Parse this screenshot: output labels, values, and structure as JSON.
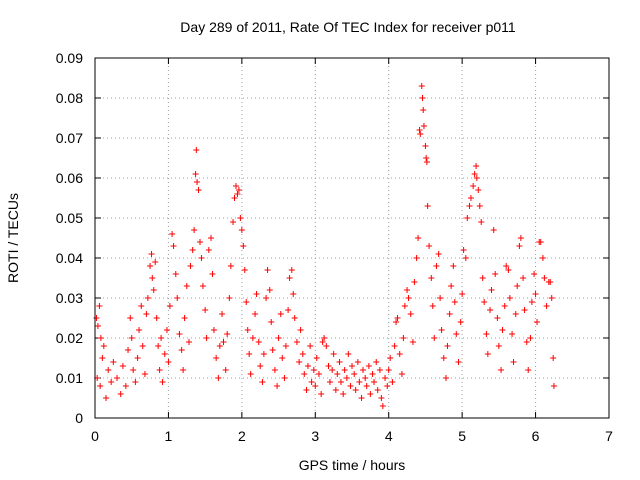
{
  "chart_data": {
    "type": "scatter",
    "title": "Day 289 of 2011, Rate Of TEC Index for receiver p011",
    "xlabel": "GPS time / hours",
    "ylabel": "ROTI / TECUs",
    "xlim": [
      0,
      7
    ],
    "ylim": [
      0,
      0.09
    ],
    "xticks": [
      "0",
      "1",
      "2",
      "3",
      "4",
      "5",
      "6",
      "7"
    ],
    "yticks": [
      "0",
      "0.01",
      "0.02",
      "0.03",
      "0.04",
      "0.05",
      "0.06",
      "0.07",
      "0.08",
      "0.09"
    ],
    "grid": true,
    "marker": "+",
    "color": "#ff0000",
    "series": [
      {
        "points": [
          [
            0.02,
            0.025
          ],
          [
            0.04,
            0.023
          ],
          [
            0.06,
            0.028
          ],
          [
            0.08,
            0.02
          ],
          [
            0.1,
            0.015
          ],
          [
            0.03,
            0.01
          ],
          [
            0.07,
            0.008
          ],
          [
            0.12,
            0.018
          ],
          [
            0.15,
            0.005
          ],
          [
            0.18,
            0.012
          ],
          [
            0.22,
            0.009
          ],
          [
            0.25,
            0.014
          ],
          [
            0.3,
            0.01
          ],
          [
            0.35,
            0.006
          ],
          [
            0.38,
            0.013
          ],
          [
            0.42,
            0.008
          ],
          [
            0.45,
            0.017
          ],
          [
            0.48,
            0.025
          ],
          [
            0.5,
            0.02
          ],
          [
            0.52,
            0.012
          ],
          [
            0.55,
            0.009
          ],
          [
            0.58,
            0.015
          ],
          [
            0.6,
            0.022
          ],
          [
            0.63,
            0.028
          ],
          [
            0.65,
            0.018
          ],
          [
            0.68,
            0.011
          ],
          [
            0.7,
            0.026
          ],
          [
            0.72,
            0.03
          ],
          [
            0.75,
            0.038
          ],
          [
            0.77,
            0.041
          ],
          [
            0.78,
            0.035
          ],
          [
            0.8,
            0.032
          ],
          [
            0.82,
            0.039
          ],
          [
            0.84,
            0.025
          ],
          [
            0.86,
            0.018
          ],
          [
            0.88,
            0.012
          ],
          [
            0.9,
            0.02
          ],
          [
            0.92,
            0.009
          ],
          [
            0.95,
            0.016
          ],
          [
            0.98,
            0.022
          ],
          [
            1.0,
            0.014
          ],
          [
            1.02,
            0.028
          ],
          [
            1.05,
            0.046
          ],
          [
            1.07,
            0.043
          ],
          [
            1.1,
            0.036
          ],
          [
            1.12,
            0.03
          ],
          [
            1.15,
            0.021
          ],
          [
            1.18,
            0.017
          ],
          [
            1.2,
            0.012
          ],
          [
            1.22,
            0.025
          ],
          [
            1.25,
            0.033
          ],
          [
            1.28,
            0.019
          ],
          [
            1.3,
            0.038
          ],
          [
            1.33,
            0.042
          ],
          [
            1.35,
            0.047
          ],
          [
            1.37,
            0.061
          ],
          [
            1.38,
            0.067
          ],
          [
            1.39,
            0.059
          ],
          [
            1.41,
            0.057
          ],
          [
            1.43,
            0.044
          ],
          [
            1.45,
            0.04
          ],
          [
            1.47,
            0.033
          ],
          [
            1.5,
            0.027
          ],
          [
            1.52,
            0.02
          ],
          [
            1.55,
            0.042
          ],
          [
            1.58,
            0.045
          ],
          [
            1.6,
            0.036
          ],
          [
            1.62,
            0.022
          ],
          [
            1.65,
            0.015
          ],
          [
            1.68,
            0.01
          ],
          [
            1.7,
            0.018
          ],
          [
            1.73,
            0.026
          ],
          [
            1.75,
            0.019
          ],
          [
            1.78,
            0.012
          ],
          [
            1.8,
            0.021
          ],
          [
            1.83,
            0.03
          ],
          [
            1.85,
            0.038
          ],
          [
            1.88,
            0.049
          ],
          [
            1.9,
            0.055
          ],
          [
            1.92,
            0.058
          ],
          [
            1.94,
            0.056
          ],
          [
            1.96,
            0.057
          ],
          [
            1.98,
            0.05
          ],
          [
            2.0,
            0.047
          ],
          [
            2.02,
            0.043
          ],
          [
            2.04,
            0.037
          ],
          [
            2.06,
            0.029
          ],
          [
            2.08,
            0.022
          ],
          [
            2.1,
            0.016
          ],
          [
            2.12,
            0.011
          ],
          [
            2.15,
            0.02
          ],
          [
            2.18,
            0.026
          ],
          [
            2.2,
            0.031
          ],
          [
            2.23,
            0.019
          ],
          [
            2.25,
            0.013
          ],
          [
            2.28,
            0.009
          ],
          [
            2.3,
            0.016
          ],
          [
            2.33,
            0.03
          ],
          [
            2.35,
            0.037
          ],
          [
            2.38,
            0.032
          ],
          [
            2.4,
            0.024
          ],
          [
            2.42,
            0.017
          ],
          [
            2.45,
            0.012
          ],
          [
            2.48,
            0.008
          ],
          [
            2.5,
            0.02
          ],
          [
            2.53,
            0.026
          ],
          [
            2.55,
            0.015
          ],
          [
            2.58,
            0.01
          ],
          [
            2.6,
            0.018
          ],
          [
            2.63,
            0.027
          ],
          [
            2.65,
            0.035
          ],
          [
            2.68,
            0.037
          ],
          [
            2.7,
            0.031
          ],
          [
            2.72,
            0.025
          ],
          [
            2.75,
            0.019
          ],
          [
            2.78,
            0.014
          ],
          [
            2.8,
            0.022
          ],
          [
            2.83,
            0.016
          ],
          [
            2.85,
            0.011
          ],
          [
            2.88,
            0.007
          ],
          [
            2.9,
            0.013
          ],
          [
            2.93,
            0.018
          ],
          [
            2.95,
            0.009
          ],
          [
            2.98,
            0.012
          ],
          [
            3.0,
            0.008
          ],
          [
            3.02,
            0.015
          ],
          [
            3.05,
            0.011
          ],
          [
            3.08,
            0.006
          ],
          [
            3.1,
            0.019
          ],
          [
            3.12,
            0.02
          ],
          [
            3.15,
            0.018
          ],
          [
            3.18,
            0.013
          ],
          [
            3.2,
            0.009
          ],
          [
            3.23,
            0.012
          ],
          [
            3.25,
            0.016
          ],
          [
            3.28,
            0.007
          ],
          [
            3.3,
            0.011
          ],
          [
            3.33,
            0.014
          ],
          [
            3.35,
            0.009
          ],
          [
            3.38,
            0.006
          ],
          [
            3.4,
            0.012
          ],
          [
            3.43,
            0.01
          ],
          [
            3.45,
            0.016
          ],
          [
            3.48,
            0.008
          ],
          [
            3.5,
            0.013
          ],
          [
            3.53,
            0.011
          ],
          [
            3.55,
            0.007
          ],
          [
            3.58,
            0.014
          ],
          [
            3.6,
            0.009
          ],
          [
            3.63,
            0.005
          ],
          [
            3.65,
            0.012
          ],
          [
            3.68,
            0.01
          ],
          [
            3.7,
            0.008
          ],
          [
            3.73,
            0.013
          ],
          [
            3.75,
            0.006
          ],
          [
            3.78,
            0.011
          ],
          [
            3.8,
            0.009
          ],
          [
            3.83,
            0.014
          ],
          [
            3.85,
            0.007
          ],
          [
            3.88,
            0.012
          ],
          [
            3.9,
            0.005
          ],
          [
            3.92,
            0.003
          ],
          [
            3.95,
            0.01
          ],
          [
            3.98,
            0.008
          ],
          [
            4.0,
            0.012
          ],
          [
            4.02,
            0.015
          ],
          [
            4.05,
            0.009
          ],
          [
            4.08,
            0.018
          ],
          [
            4.1,
            0.024
          ],
          [
            4.12,
            0.025
          ],
          [
            4.15,
            0.016
          ],
          [
            4.18,
            0.011
          ],
          [
            4.2,
            0.02
          ],
          [
            4.22,
            0.028
          ],
          [
            4.25,
            0.032
          ],
          [
            4.27,
            0.03
          ],
          [
            4.3,
            0.026
          ],
          [
            4.33,
            0.019
          ],
          [
            4.35,
            0.034
          ],
          [
            4.38,
            0.04
          ],
          [
            4.4,
            0.045
          ],
          [
            4.42,
            0.072
          ],
          [
            4.43,
            0.071
          ],
          [
            4.45,
            0.083
          ],
          [
            4.46,
            0.08
          ],
          [
            4.47,
            0.077
          ],
          [
            4.48,
            0.073
          ],
          [
            4.5,
            0.068
          ],
          [
            4.51,
            0.065
          ],
          [
            4.52,
            0.064
          ],
          [
            4.53,
            0.053
          ],
          [
            4.55,
            0.043
          ],
          [
            4.58,
            0.035
          ],
          [
            4.6,
            0.028
          ],
          [
            4.62,
            0.02
          ],
          [
            4.65,
            0.038
          ],
          [
            4.68,
            0.041
          ],
          [
            4.7,
            0.03
          ],
          [
            4.72,
            0.022
          ],
          [
            4.75,
            0.015
          ],
          [
            4.78,
            0.01
          ],
          [
            4.8,
            0.018
          ],
          [
            4.83,
            0.026
          ],
          [
            4.85,
            0.033
          ],
          [
            4.88,
            0.038
          ],
          [
            4.9,
            0.029
          ],
          [
            4.92,
            0.021
          ],
          [
            4.95,
            0.014
          ],
          [
            4.98,
            0.024
          ],
          [
            5.0,
            0.031
          ],
          [
            5.02,
            0.042
          ],
          [
            5.05,
            0.04
          ],
          [
            5.07,
            0.05
          ],
          [
            5.1,
            0.053
          ],
          [
            5.12,
            0.055
          ],
          [
            5.15,
            0.058
          ],
          [
            5.17,
            0.061
          ],
          [
            5.19,
            0.063
          ],
          [
            5.2,
            0.06
          ],
          [
            5.22,
            0.057
          ],
          [
            5.24,
            0.053
          ],
          [
            5.26,
            0.049
          ],
          [
            5.28,
            0.035
          ],
          [
            5.3,
            0.029
          ],
          [
            5.33,
            0.021
          ],
          [
            5.35,
            0.016
          ],
          [
            5.38,
            0.027
          ],
          [
            5.4,
            0.032
          ],
          [
            5.43,
            0.047
          ],
          [
            5.45,
            0.036
          ],
          [
            5.48,
            0.025
          ],
          [
            5.5,
            0.018
          ],
          [
            5.53,
            0.012
          ],
          [
            5.55,
            0.022
          ],
          [
            5.58,
            0.028
          ],
          [
            5.6,
            0.038
          ],
          [
            5.63,
            0.037
          ],
          [
            5.65,
            0.03
          ],
          [
            5.68,
            0.021
          ],
          [
            5.7,
            0.014
          ],
          [
            5.73,
            0.026
          ],
          [
            5.75,
            0.033
          ],
          [
            5.78,
            0.043
          ],
          [
            5.8,
            0.045
          ],
          [
            5.83,
            0.035
          ],
          [
            5.85,
            0.027
          ],
          [
            5.88,
            0.019
          ],
          [
            5.9,
            0.012
          ],
          [
            5.93,
            0.02
          ],
          [
            5.95,
            0.029
          ],
          [
            5.98,
            0.036
          ],
          [
            6.0,
            0.031
          ],
          [
            6.02,
            0.024
          ],
          [
            6.05,
            0.044
          ],
          [
            6.07,
            0.044
          ],
          [
            6.1,
            0.04
          ],
          [
            6.12,
            0.035
          ],
          [
            6.15,
            0.028
          ],
          [
            6.18,
            0.034
          ],
          [
            6.2,
            0.034
          ],
          [
            6.22,
            0.03
          ],
          [
            6.24,
            0.015
          ],
          [
            6.25,
            0.008
          ]
        ]
      }
    ]
  }
}
